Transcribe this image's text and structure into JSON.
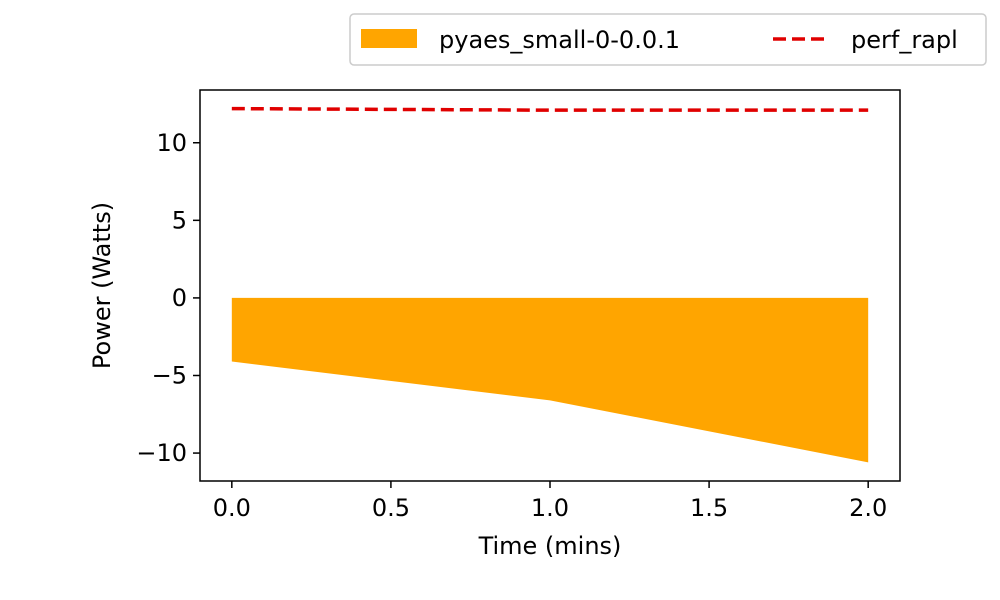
{
  "chart_data": {
    "type": "area",
    "x": [
      0.0,
      1.0,
      2.0
    ],
    "xlabel": "Time (mins)",
    "ylabel": "Power (Watts)",
    "xlim": [
      -0.1,
      2.1
    ],
    "ylim": [
      -11.8,
      13.4
    ],
    "xticks": [
      0.0,
      0.5,
      1.0,
      1.5,
      2.0
    ],
    "xtick_labels": [
      "0.0",
      "0.5",
      "1.0",
      "1.5",
      "2.0"
    ],
    "yticks": [
      -10,
      -5,
      0,
      5,
      10
    ],
    "ytick_labels": [
      "−10",
      "−5",
      "0",
      "5",
      "10"
    ],
    "grid": false,
    "legend_position": "top-right, outside",
    "series": [
      {
        "name": "pyaes_small-0-0.0.1",
        "kind": "area",
        "color": "#ffa500",
        "baseline": 0,
        "values": [
          -4.1,
          -6.6,
          -10.6
        ]
      },
      {
        "name": "perf_rapl",
        "kind": "line",
        "style": "dashed",
        "color": "#e00000",
        "values": [
          12.2,
          12.1,
          12.1
        ]
      }
    ]
  }
}
